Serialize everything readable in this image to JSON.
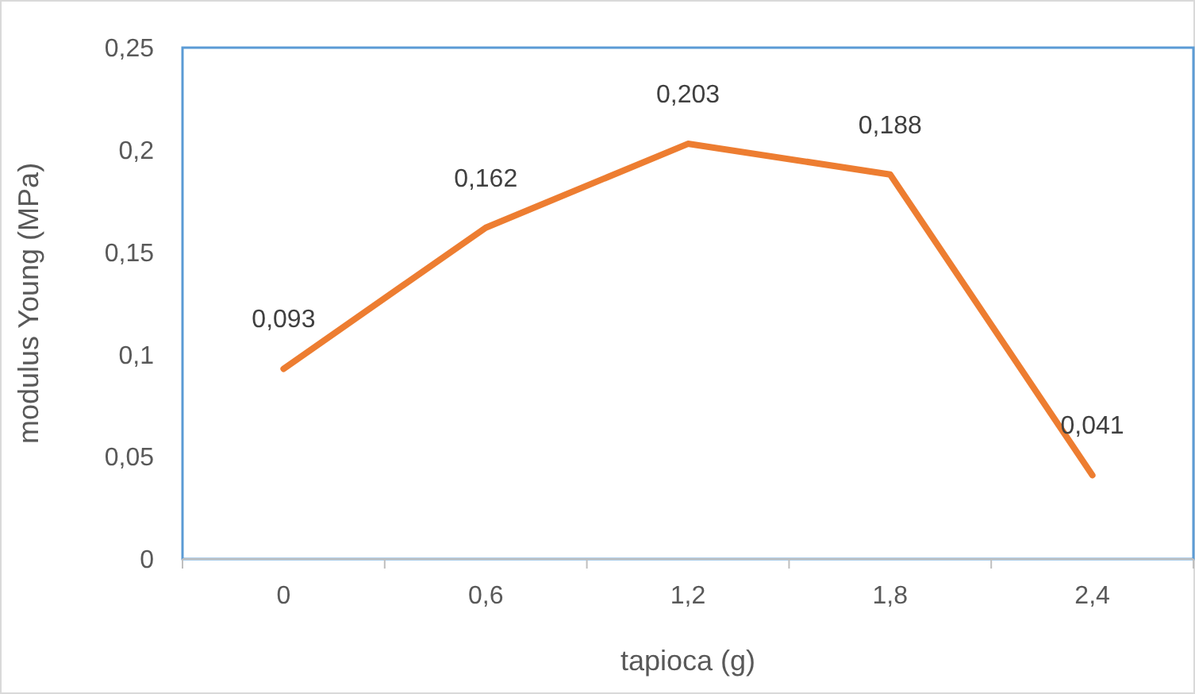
{
  "chart_data": {
    "type": "line",
    "xlabel": "tapioca (g)",
    "ylabel": "modulus Young (MPa)",
    "categories": [
      "0",
      "0,6",
      "1,2",
      "1,8",
      "2,4"
    ],
    "series": [
      {
        "color": "#ed7d31",
        "values": [
          0.093,
          0.162,
          0.203,
          0.188,
          0.041
        ],
        "value_labels": [
          "0,093",
          "0,162",
          "0,203",
          "0,188",
          "0,041"
        ]
      }
    ],
    "ylim": [
      0,
      0.25
    ],
    "yticks": [
      {
        "value": 0,
        "label": "0"
      },
      {
        "value": 0.05,
        "label": "0,05"
      },
      {
        "value": 0.1,
        "label": "0,1"
      },
      {
        "value": 0.15,
        "label": "0,15"
      },
      {
        "value": 0.2,
        "label": "0,2"
      },
      {
        "value": 0.25,
        "label": "0,25"
      }
    ],
    "grid": false,
    "marker": "none",
    "line_style": "solid"
  }
}
